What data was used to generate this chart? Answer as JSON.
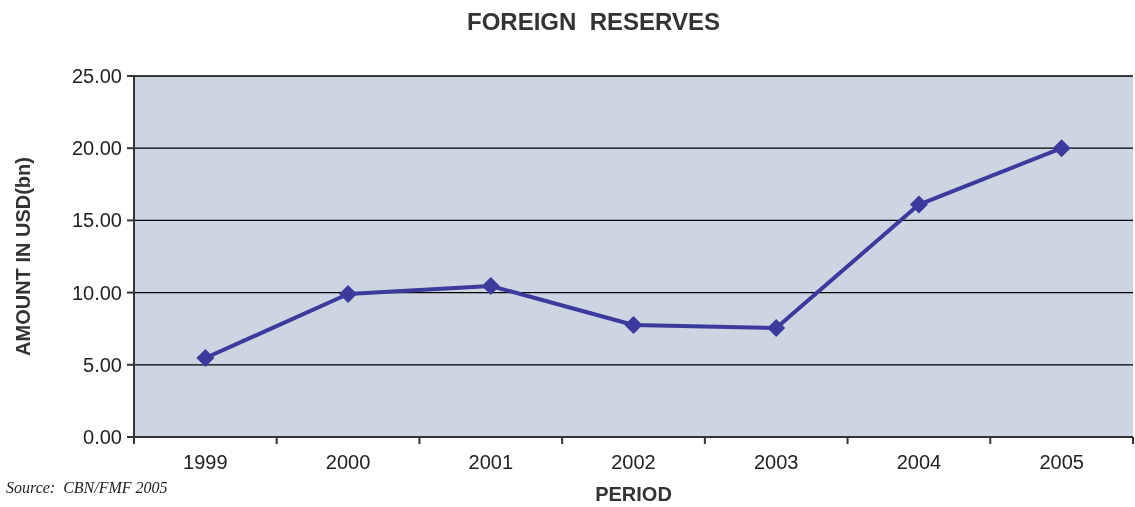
{
  "chart_data": {
    "type": "line",
    "title": "FOREIGN  RESERVES",
    "xlabel": "PERIOD",
    "ylabel": "AMOUNT IN USD(bn)",
    "categories": [
      "1999",
      "2000",
      "2001",
      "2002",
      "2003",
      "2004",
      "2005"
    ],
    "series": [
      {
        "color": "#3b3b9e",
        "values": [
          5.47,
          9.9,
          10.46,
          7.76,
          7.55,
          16.1,
          20.0
        ]
      }
    ],
    "ylim": [
      0,
      25
    ],
    "yticks": [
      {
        "value": 0,
        "label": "0.00"
      },
      {
        "value": 5,
        "label": "5.00"
      },
      {
        "value": 10,
        "label": "10.00"
      },
      {
        "value": 15,
        "label": "15.00"
      },
      {
        "value": 20,
        "label": "20.00"
      },
      {
        "value": 25,
        "label": "25.00"
      }
    ],
    "grid": "y",
    "marker": "diamond",
    "line_style": "solid",
    "annotations": [
      "Source:  CBN/FMF 2005"
    ]
  }
}
